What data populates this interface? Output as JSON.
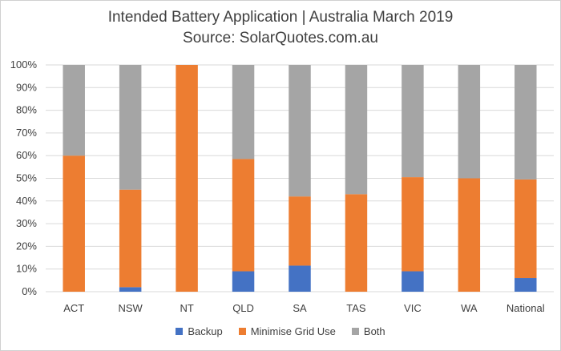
{
  "chart_data": {
    "type": "bar",
    "stacked": true,
    "title": "Intended Battery Application | Australia March 2019",
    "subtitle": "Source: SolarQuotes.com.au",
    "categories": [
      "ACT",
      "NSW",
      "NT",
      "QLD",
      "SA",
      "TAS",
      "VIC",
      "WA",
      "National"
    ],
    "series": [
      {
        "name": "Backup",
        "color": "#4472C4",
        "values": [
          0,
          2,
          0,
          9,
          11.5,
          0,
          9,
          0,
          6
        ]
      },
      {
        "name": "Minimise Grid Use",
        "color": "#ED7D31",
        "values": [
          60,
          43,
          100,
          49.5,
          30.5,
          43,
          41.5,
          50,
          43.5
        ]
      },
      {
        "name": "Both",
        "color": "#A5A5A5",
        "values": [
          40,
          55,
          0,
          41.5,
          58,
          57,
          49.5,
          50,
          50.5
        ]
      }
    ],
    "ylim": [
      0,
      100
    ],
    "yticks": [
      "0%",
      "10%",
      "20%",
      "30%",
      "40%",
      "50%",
      "60%",
      "70%",
      "80%",
      "90%",
      "100%"
    ],
    "grid": true,
    "legend": "bottom"
  }
}
